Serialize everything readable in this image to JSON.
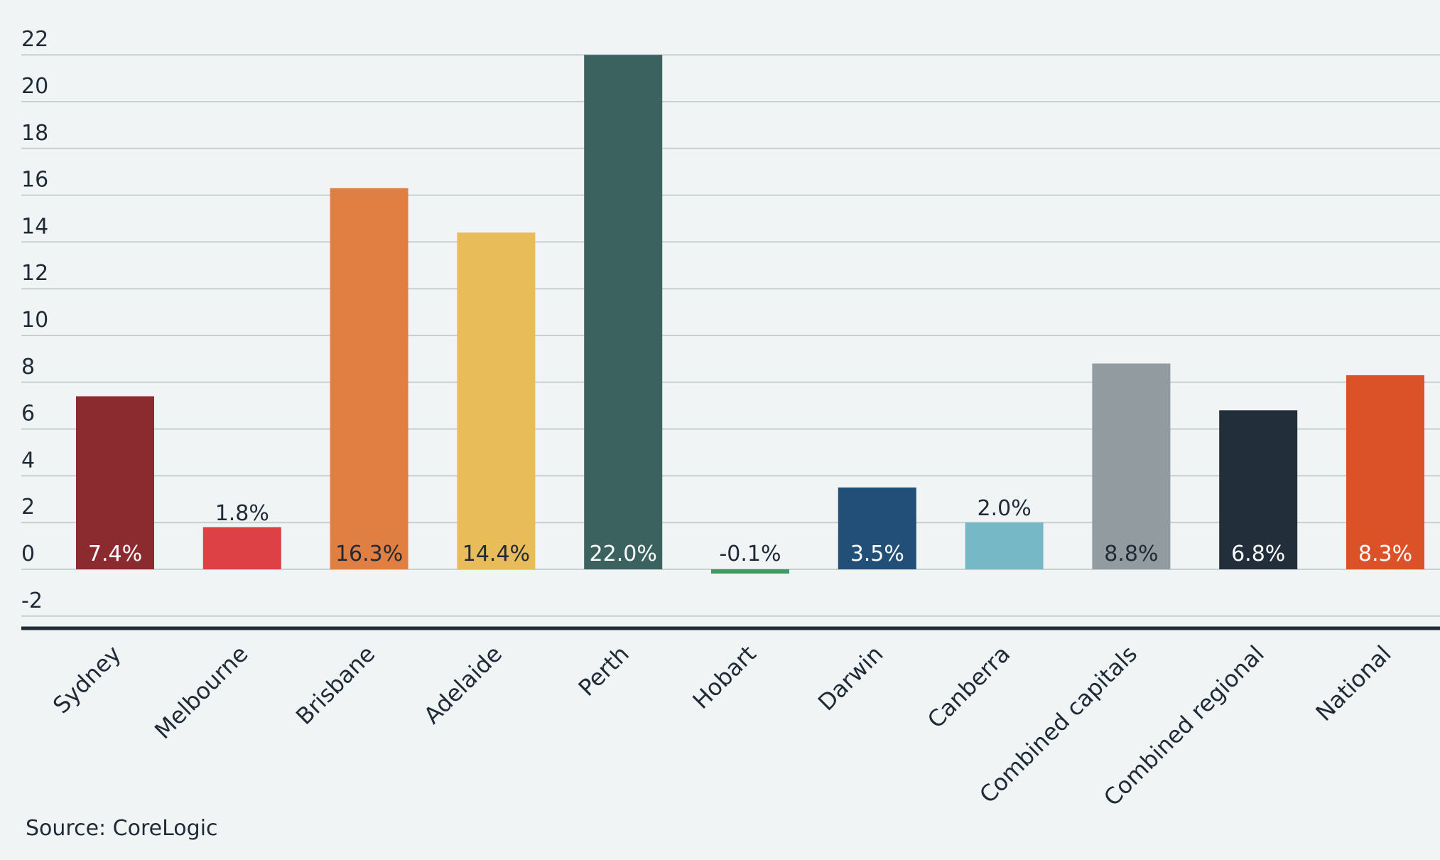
{
  "source": "Source: CoreLogic",
  "chart_data": {
    "type": "bar",
    "title": "",
    "xlabel": "",
    "ylabel": "",
    "ylim": [
      -2,
      22
    ],
    "y_ticks": [
      -2,
      0,
      2,
      4,
      6,
      8,
      10,
      12,
      14,
      16,
      18,
      20,
      22
    ],
    "grid": true,
    "legend": "none",
    "categories": [
      "Sydney",
      "Melbourne",
      "Brisbane",
      "Adelaide",
      "Perth",
      "Hobart",
      "Darwin",
      "Canberra",
      "Combined capitals",
      "Combined regional",
      "National"
    ],
    "values": [
      7.4,
      1.8,
      16.3,
      14.4,
      22.0,
      -0.1,
      3.5,
      2.0,
      8.8,
      6.8,
      8.3
    ],
    "data_labels": [
      "7.4%",
      "1.8%",
      "16.3%",
      "14.4%",
      "22.0%",
      "-0.1%",
      "3.5%",
      "2.0%",
      "8.8%",
      "6.8%",
      "8.3%"
    ],
    "colors": [
      "#8b2b30",
      "#dd4145",
      "#e17f42",
      "#e9bc5a",
      "#3b625e",
      "#3f9b66",
      "#224f78",
      "#76b8c5",
      "#929ca0",
      "#222f3b",
      "#dc5228"
    ],
    "label_colors": [
      "#ffffff",
      "#1f2a36",
      "#1f2a36",
      "#1f2a36",
      "#ffffff",
      "#1f2a36",
      "#ffffff",
      "#1f2a36",
      "#1f2a36",
      "#ffffff",
      "#ffffff"
    ]
  }
}
